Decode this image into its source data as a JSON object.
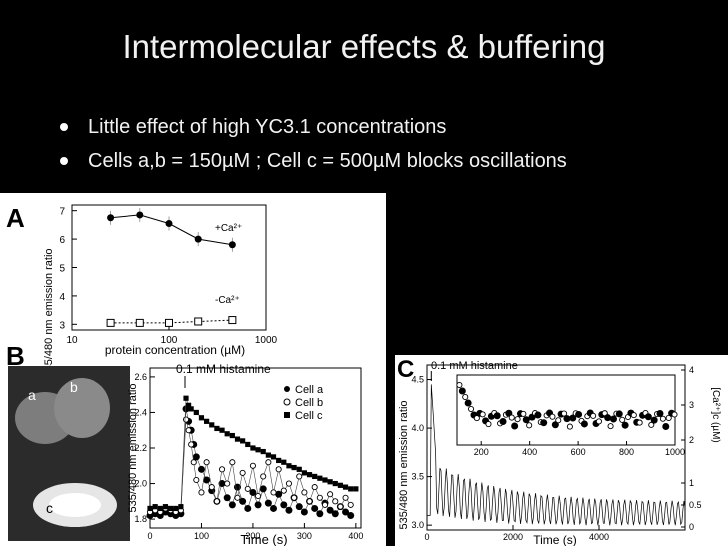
{
  "slide": {
    "title": "Intermolecular effects & buffering",
    "bullets": [
      "Little effect of high YC3.1 concentrations",
      "Cells a,b = 150µM ; Cell c = 500µM blocks oscillations"
    ]
  },
  "figure": {
    "panel_letters": [
      "A",
      "B",
      "C"
    ],
    "cell_labels": [
      "a",
      "b",
      "c"
    ],
    "background": "#ffffff",
    "ink": "#000000"
  },
  "chart_data": [
    {
      "type": "scatter",
      "panel": "A",
      "xscale": "log",
      "xlim": [
        10,
        1000
      ],
      "ylim": [
        2.8,
        7.2
      ],
      "xticks": [
        10,
        100,
        1000
      ],
      "yticks": [
        3,
        4,
        5,
        6,
        7
      ],
      "xlabel": "protein concentration (µM)",
      "ylabel": "535/480 nm emission ratio",
      "series": [
        {
          "name": "+Ca²⁺",
          "x": [
            25,
            50,
            100,
            200,
            450
          ],
          "y": [
            6.75,
            6.85,
            6.55,
            6.0,
            5.8
          ]
        },
        {
          "name": "-Ca²⁺",
          "x": [
            25,
            50,
            100,
            200,
            450
          ],
          "y": [
            3.05,
            3.05,
            3.05,
            3.1,
            3.15
          ]
        }
      ]
    },
    {
      "type": "scatter",
      "panel": "B",
      "xlim": [
        0,
        410
      ],
      "ylim": [
        1.75,
        2.65
      ],
      "xticks": [
        0,
        100,
        200,
        300,
        400
      ],
      "yticks": [
        1.8,
        2.0,
        2.2,
        2.4,
        2.6
      ],
      "xlabel": "Time (s)",
      "ylabel": "535/480 nm emission ratio",
      "annotation": "0.1 mM histamine",
      "stimulus_time": 68,
      "series": [
        {
          "name": "Cell a",
          "x": [
            0,
            10,
            20,
            30,
            40,
            50,
            60,
            70,
            75,
            80,
            85,
            90,
            100,
            110,
            120,
            130,
            140,
            150,
            160,
            170,
            180,
            190,
            200,
            210,
            220,
            230,
            240,
            250,
            260,
            270,
            280,
            290,
            300,
            310,
            320,
            330,
            340,
            350,
            360,
            370,
            380,
            390
          ],
          "y": [
            1.82,
            1.83,
            1.82,
            1.84,
            1.83,
            1.82,
            1.83,
            2.42,
            2.35,
            2.3,
            2.22,
            2.15,
            2.08,
            2.02,
            1.96,
            1.9,
            2.0,
            1.92,
            1.88,
            1.98,
            1.9,
            1.86,
            1.95,
            1.88,
            1.97,
            1.89,
            1.86,
            1.94,
            1.88,
            1.85,
            1.92,
            1.87,
            1.84,
            1.9,
            1.86,
            1.83,
            1.89,
            1.85,
            1.83,
            1.87,
            1.84,
            1.82
          ]
        },
        {
          "name": "Cell b",
          "x": [
            0,
            10,
            20,
            30,
            40,
            50,
            60,
            70,
            75,
            80,
            85,
            90,
            100,
            110,
            120,
            130,
            140,
            150,
            160,
            170,
            180,
            190,
            200,
            210,
            220,
            230,
            240,
            250,
            260,
            270,
            280,
            290,
            300,
            310,
            320,
            330,
            340,
            350,
            360,
            370,
            380,
            390
          ],
          "y": [
            1.84,
            1.85,
            1.84,
            1.86,
            1.85,
            1.84,
            1.85,
            2.36,
            2.3,
            2.22,
            2.12,
            2.02,
            1.95,
            2.12,
            1.98,
            1.9,
            2.08,
            2.0,
            2.12,
            1.92,
            2.06,
            1.97,
            2.1,
            1.93,
            2.04,
            2.12,
            1.95,
            2.08,
            1.96,
            2.0,
            1.92,
            2.04,
            1.95,
            1.9,
            1.98,
            1.92,
            1.88,
            1.94,
            1.9,
            1.87,
            1.92,
            1.88
          ]
        },
        {
          "name": "Cell c",
          "x": [
            0,
            10,
            20,
            30,
            40,
            50,
            60,
            70,
            75,
            80,
            90,
            100,
            110,
            120,
            130,
            140,
            150,
            160,
            170,
            180,
            190,
            200,
            210,
            220,
            230,
            240,
            250,
            260,
            270,
            280,
            290,
            300,
            310,
            320,
            330,
            340,
            350,
            360,
            370,
            380,
            390,
            400
          ],
          "y": [
            1.86,
            1.87,
            1.86,
            1.87,
            1.86,
            1.86,
            1.87,
            2.48,
            2.44,
            2.42,
            2.4,
            2.37,
            2.35,
            2.33,
            2.31,
            2.3,
            2.28,
            2.27,
            2.25,
            2.24,
            2.22,
            2.2,
            2.19,
            2.18,
            2.16,
            2.15,
            2.13,
            2.12,
            2.1,
            2.09,
            2.08,
            2.06,
            2.05,
            2.04,
            2.03,
            2.02,
            2.01,
            2.0,
            1.99,
            1.98,
            1.97,
            1.97
          ]
        }
      ]
    },
    {
      "type": "line",
      "panel": "C",
      "xlim": [
        0,
        6000
      ],
      "ylim": [
        2.95,
        4.65
      ],
      "xticks": [
        0,
        2000,
        4000
      ],
      "yticks": [
        3.0,
        3.5,
        4.0,
        4.5
      ],
      "xlabel": "Time (s)",
      "ylabel": "535/480 nm emission ratio",
      "y2label": "[Ca²⁺]c (µM)",
      "y2ticks": [
        0,
        0.5,
        1,
        2,
        3,
        4
      ],
      "annotation": "0.1 mM histamine",
      "stimulus_time": 100,
      "inset": {
        "xlim": [
          100,
          1000
        ],
        "xticks": [
          200,
          400,
          600,
          800,
          1000
        ]
      }
    }
  ]
}
